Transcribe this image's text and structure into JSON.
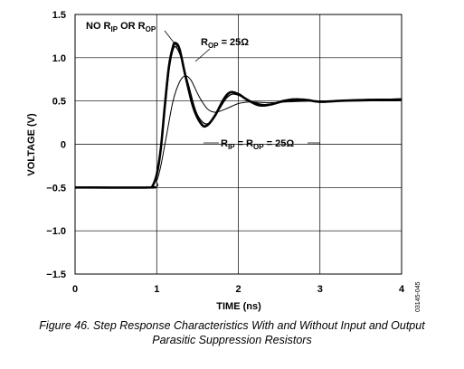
{
  "chart_data": {
    "type": "line",
    "xlabel": "TIME (ns)",
    "ylabel": "VOLTAGE (V)",
    "xlim": [
      0,
      4
    ],
    "ylim": [
      -1.5,
      1.5
    ],
    "x_ticks": [
      "0",
      "1",
      "2",
      "3",
      "4"
    ],
    "y_ticks": [
      "1.5",
      "1.0",
      "0.5",
      "0",
      "−0.5",
      "−1.0",
      "−1.5"
    ],
    "grid": true,
    "annotations": {
      "no_r": {
        "main1": "NO R",
        "sub1": "IP",
        "main2": " OR R",
        "sub2": "OP"
      },
      "rop": {
        "main1": "R",
        "sub1": "OP",
        "main2": " = 25Ω"
      },
      "rip_rop": {
        "main1": "R",
        "sub1": "IP",
        "main2": " = R",
        "sub2": "OP",
        "main3": " = 25Ω"
      }
    },
    "series": [
      {
        "stroke_width": 2.6,
        "points": [
          [
            0,
            -0.5
          ],
          [
            0.9,
            -0.5
          ],
          [
            0.95,
            -0.48
          ],
          [
            1.0,
            -0.35
          ],
          [
            1.05,
            -0.05
          ],
          [
            1.1,
            0.45
          ],
          [
            1.15,
            0.9
          ],
          [
            1.2,
            1.13
          ],
          [
            1.23,
            1.17
          ],
          [
            1.28,
            1.1
          ],
          [
            1.35,
            0.8
          ],
          [
            1.45,
            0.42
          ],
          [
            1.55,
            0.23
          ],
          [
            1.62,
            0.22
          ],
          [
            1.72,
            0.34
          ],
          [
            1.82,
            0.52
          ],
          [
            1.9,
            0.6
          ],
          [
            2.0,
            0.58
          ],
          [
            2.1,
            0.52
          ],
          [
            2.25,
            0.45
          ],
          [
            2.4,
            0.46
          ],
          [
            2.55,
            0.5
          ],
          [
            2.7,
            0.52
          ],
          [
            2.85,
            0.51
          ],
          [
            3.0,
            0.49
          ],
          [
            3.2,
            0.5
          ],
          [
            3.5,
            0.51
          ],
          [
            3.75,
            0.51
          ],
          [
            4.0,
            0.52
          ]
        ]
      },
      {
        "stroke_width": 1.3,
        "points": [
          [
            0,
            -0.5
          ],
          [
            0.9,
            -0.5
          ],
          [
            0.95,
            -0.48
          ],
          [
            1.0,
            -0.36
          ],
          [
            1.05,
            -0.08
          ],
          [
            1.1,
            0.4
          ],
          [
            1.15,
            0.85
          ],
          [
            1.2,
            1.09
          ],
          [
            1.24,
            1.12
          ],
          [
            1.3,
            1.0
          ],
          [
            1.38,
            0.72
          ],
          [
            1.48,
            0.38
          ],
          [
            1.57,
            0.25
          ],
          [
            1.65,
            0.25
          ],
          [
            1.75,
            0.38
          ],
          [
            1.85,
            0.53
          ],
          [
            1.93,
            0.58
          ],
          [
            2.02,
            0.56
          ],
          [
            2.15,
            0.5
          ],
          [
            2.3,
            0.46
          ],
          [
            2.45,
            0.47
          ],
          [
            2.6,
            0.5
          ],
          [
            2.8,
            0.51
          ],
          [
            3.0,
            0.5
          ],
          [
            3.3,
            0.5
          ],
          [
            3.6,
            0.52
          ],
          [
            4.0,
            0.52
          ]
        ]
      },
      {
        "stroke_width": 1.0,
        "points": [
          [
            0,
            -0.5
          ],
          [
            0.92,
            -0.5
          ],
          [
            1.0,
            -0.42
          ],
          [
            1.05,
            -0.25
          ],
          [
            1.12,
            0.1
          ],
          [
            1.2,
            0.5
          ],
          [
            1.28,
            0.72
          ],
          [
            1.35,
            0.79
          ],
          [
            1.42,
            0.74
          ],
          [
            1.52,
            0.55
          ],
          [
            1.62,
            0.41
          ],
          [
            1.72,
            0.37
          ],
          [
            1.85,
            0.41
          ],
          [
            2.0,
            0.47
          ],
          [
            2.15,
            0.49
          ],
          [
            2.35,
            0.48
          ],
          [
            2.6,
            0.49
          ],
          [
            2.9,
            0.5
          ],
          [
            3.2,
            0.5
          ],
          [
            3.5,
            0.5
          ],
          [
            4.0,
            0.51
          ]
        ]
      }
    ]
  },
  "figure_id": "03145-045",
  "caption_line1": "Figure 46. Step Response Characteristics With and Without Input and Output",
  "caption_line2": "Parasitic Suppression Resistors"
}
